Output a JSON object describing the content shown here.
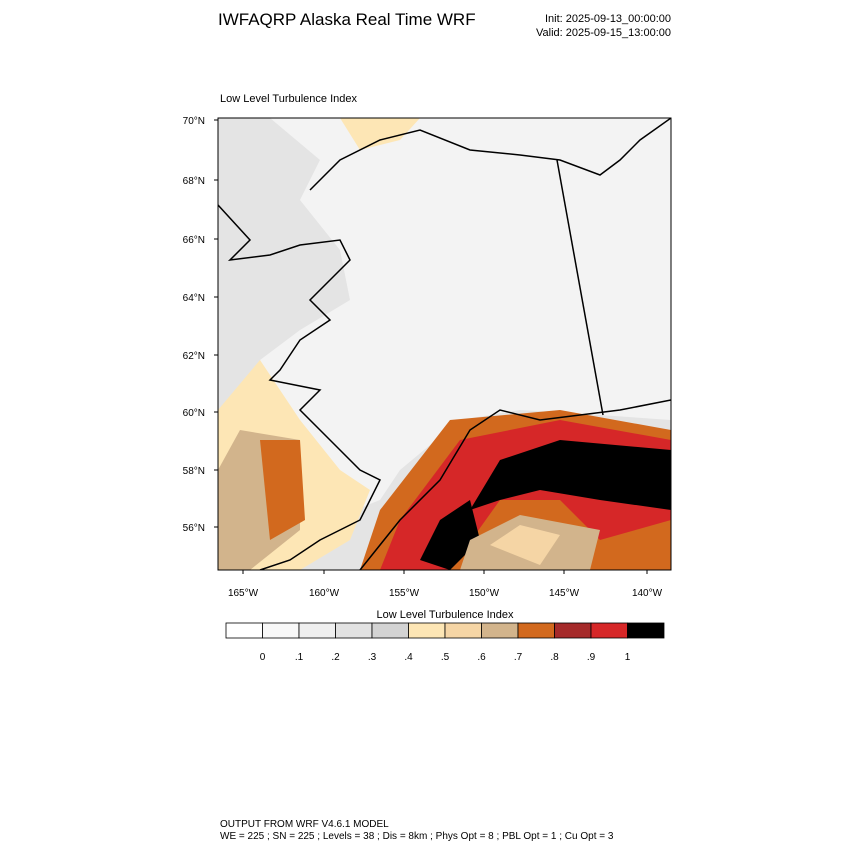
{
  "header": {
    "title": "IWFAQRP Alaska Real Time WRF",
    "init": "Init: 2025-09-13_00:00:00",
    "valid": "Valid: 2025-09-15_13:00:00"
  },
  "map": {
    "title": "Low Level Turbulence Index",
    "lat_labels": [
      "70°N",
      "68°N",
      "66°N",
      "64°N",
      "62°N",
      "60°N",
      "58°N",
      "56°N"
    ],
    "lon_labels": [
      "165°W",
      "160°W",
      "155°W",
      "150°W",
      "145°W",
      "140°W"
    ]
  },
  "colorbar": {
    "title": "Low Level Turbulence Index",
    "colors": [
      "#ffffff",
      "#f8f8f8",
      "#efefef",
      "#e2e2e2",
      "#d3d3d3",
      "#fde6b5",
      "#f5d5a5",
      "#d2b48c",
      "#d2691e",
      "#a52a2a",
      "#d62728",
      "#000000"
    ],
    "ticks": [
      0,
      {
        "value": 0.1,
        "label": ".1"
      },
      {
        "value": 0.2,
        "label": ".2"
      },
      {
        "value": 0.3,
        "label": ".3"
      },
      {
        "value": 0.4,
        "label": ".4"
      },
      {
        "value": 0.5,
        "label": ".5"
      },
      {
        "value": 0.6,
        "label": ".6"
      },
      {
        "value": 0.7,
        "label": ".7"
      },
      {
        "value": 0.8,
        "label": ".8"
      },
      {
        "value": 0.9,
        "label": ".9"
      },
      1
    ]
  },
  "footer": {
    "line1": "OUTPUT FROM WRF V4.6.1 MODEL",
    "line2": "WE = 225 ; SN = 225 ; Levels = 38 ; Dis = 8km ; Phys Opt = 8 ; PBL Opt = 1 ; Cu Opt = 3"
  }
}
